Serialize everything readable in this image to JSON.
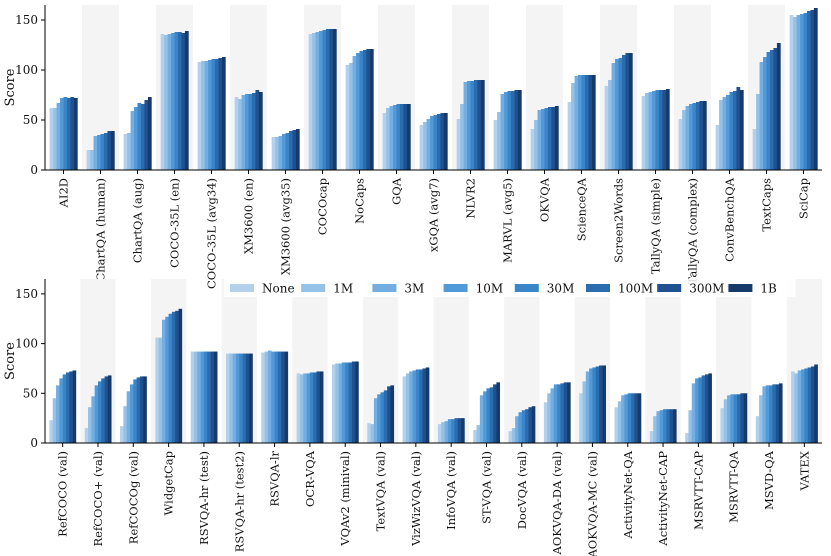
{
  "colors": [
    "#b3d1ec",
    "#96c1e7",
    "#74ade0",
    "#5299d8",
    "#3a84c8",
    "#2b6cae",
    "#1f5190",
    "#163a6a"
  ],
  "chart_data": [
    {
      "type": "bar",
      "ylabel": "Score",
      "ylim": [
        0,
        165
      ],
      "yticks": [
        0,
        50,
        100,
        150
      ],
      "categories": [
        "AI2D",
        "ChartQA (human)",
        "ChartQA (aug)",
        "COCO-35L (en)",
        "COCO-35L (avg34)",
        "XM3600 (en)",
        "XM3600 (avg35)",
        "COCOcap",
        "NoCaps",
        "GQA",
        "xGQA (avg7)",
        "NLVR2",
        "MARVL (avg5)",
        "OKVQA",
        "ScienceQA",
        "Screen2Words",
        "TallyQA (simple)",
        "TallyQA (complex)",
        "ConvBenchQA",
        "TextCaps",
        "SciCap"
      ],
      "series": [
        {
          "name": "None",
          "values": [
            62,
            20,
            36,
            136,
            108,
            73,
            33,
            136,
            105,
            57,
            45,
            51,
            50,
            41,
            68,
            84,
            74,
            51,
            45,
            41,
            155
          ]
        },
        {
          "name": "1M",
          "values": [
            62,
            20,
            37,
            135,
            109,
            71,
            33,
            137,
            107,
            62,
            48,
            66,
            58,
            50,
            87,
            90,
            77,
            60,
            70,
            76,
            153
          ]
        },
        {
          "name": "3M",
          "values": [
            67,
            34,
            59,
            136,
            109,
            75,
            34,
            138,
            114,
            64,
            51,
            88,
            76,
            60,
            94,
            107,
            78,
            64,
            73,
            108,
            155
          ]
        },
        {
          "name": "10M",
          "values": [
            72,
            35,
            63,
            137,
            110,
            76,
            36,
            139,
            117,
            65,
            54,
            89,
            78,
            61,
            95,
            111,
            79,
            66,
            75,
            113,
            156
          ]
        },
        {
          "name": "30M",
          "values": [
            73,
            36,
            67,
            138,
            111,
            76,
            37,
            140,
            119,
            66,
            55,
            89,
            79,
            62,
            95,
            112,
            80,
            67,
            78,
            118,
            157
          ]
        },
        {
          "name": "100M",
          "values": [
            72,
            37,
            66,
            138,
            111,
            77,
            39,
            141,
            120,
            66,
            56,
            90,
            79,
            63,
            95,
            115,
            80,
            68,
            79,
            120,
            159
          ]
        },
        {
          "name": "300M",
          "values": [
            73,
            39,
            70,
            137,
            112,
            80,
            40,
            141,
            121,
            66,
            57,
            90,
            80,
            63,
            95,
            117,
            80,
            69,
            83,
            122,
            160
          ]
        },
        {
          "name": "1B",
          "values": [
            72,
            39,
            73,
            139,
            113,
            78,
            41,
            141,
            121,
            66,
            57,
            90,
            80,
            64,
            95,
            117,
            81,
            69,
            80,
            127,
            162
          ]
        }
      ]
    },
    {
      "type": "bar",
      "ylabel": "Score",
      "ylim": [
        0,
        165
      ],
      "yticks": [
        0,
        50,
        100,
        150
      ],
      "legend": {
        "placement": "top",
        "entries": [
          "None",
          "1M",
          "3M",
          "10M",
          "30M",
          "100M",
          "300M",
          "1B"
        ]
      },
      "categories": [
        "RefCOCO (val)",
        "RefCOCO+ (val)",
        "RefCOCOg (val)",
        "WidgetCap",
        "RSVQA-hr (test)",
        "RSVQA-hr (test2)",
        "RSVQA-lr",
        "OCR-VQA",
        "VQAv2 (minival)",
        "TextVQA (val)",
        "VizWizVQA (val)",
        "InfoVQA (val)",
        "ST-VQA (val)",
        "DocVQA (val)",
        "AOKVQA-DA (val)",
        "AOKVQA-MC (val)",
        "ActivityNet-QA",
        "ActivityNet-CAP",
        "MSRVTT-CAP",
        "MSRVTT-QA",
        "MSVD-QA",
        "VATEX"
      ],
      "series": [
        {
          "name": "None",
          "values": [
            23,
            15,
            17,
            106,
            92,
            90,
            91,
            70,
            79,
            20,
            67,
            19,
            13,
            12,
            41,
            50,
            36,
            12,
            10,
            35,
            27,
            72
          ]
        },
        {
          "name": "1M",
          "values": [
            45,
            36,
            37,
            106,
            92,
            90,
            92,
            69,
            80,
            19,
            70,
            21,
            18,
            15,
            50,
            62,
            42,
            27,
            33,
            44,
            48,
            70
          ]
        },
        {
          "name": "3M",
          "values": [
            58,
            47,
            52,
            124,
            92,
            90,
            93,
            70,
            80,
            45,
            72,
            22,
            48,
            27,
            55,
            72,
            48,
            32,
            60,
            48,
            57,
            73
          ]
        },
        {
          "name": "10M",
          "values": [
            65,
            58,
            59,
            127,
            92,
            90,
            92,
            70,
            81,
            49,
            73,
            24,
            52,
            31,
            59,
            75,
            49,
            33,
            65,
            49,
            58,
            74
          ]
        },
        {
          "name": "30M",
          "values": [
            69,
            62,
            64,
            130,
            92,
            90,
            92,
            71,
            81,
            51,
            74,
            24,
            55,
            33,
            59,
            76,
            50,
            34,
            66,
            49,
            58,
            75
          ]
        },
        {
          "name": "100M",
          "values": [
            71,
            65,
            66,
            132,
            92,
            90,
            92,
            71,
            81,
            53,
            74,
            25,
            56,
            34,
            60,
            77,
            50,
            34,
            68,
            49,
            59,
            76
          ]
        },
        {
          "name": "300M",
          "values": [
            72,
            67,
            67,
            133,
            92,
            90,
            92,
            72,
            82,
            57,
            75,
            25,
            59,
            36,
            61,
            78,
            50,
            34,
            69,
            50,
            59,
            77
          ]
        },
        {
          "name": "1B",
          "values": [
            73,
            68,
            67,
            135,
            92,
            90,
            92,
            72,
            82,
            58,
            76,
            25,
            61,
            37,
            61,
            78,
            50,
            34,
            70,
            50,
            60,
            79
          ]
        }
      ]
    }
  ]
}
